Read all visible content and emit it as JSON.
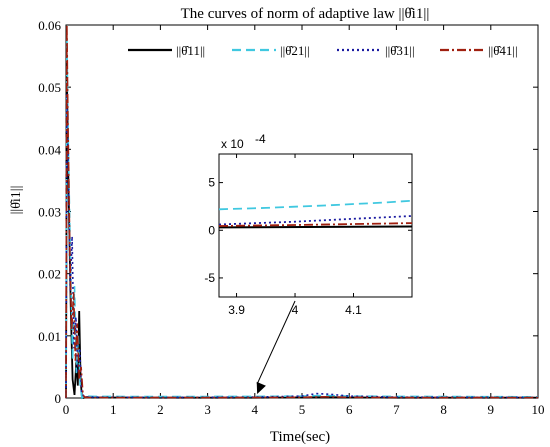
{
  "chart_data": {
    "type": "line",
    "title": "The curves of norm of adaptive law ||θ̂i1||",
    "xlabel": "Time(sec)",
    "ylabel": "||θ̂i1||",
    "xlim": [
      0,
      10
    ],
    "ylim": [
      0,
      0.06
    ],
    "xticks": [
      "0",
      "1",
      "2",
      "3",
      "4",
      "5",
      "6",
      "7",
      "8",
      "9",
      "10"
    ],
    "yticks": [
      "0",
      "0.01",
      "0.02",
      "0.03",
      "0.04",
      "0.05",
      "0.06"
    ],
    "grid": false,
    "legend_position": "top",
    "series": [
      {
        "name": "||θ̂11||",
        "color": "#000000",
        "dash": "solid",
        "x": [
          0,
          0.02,
          0.05,
          0.1,
          0.14,
          0.18,
          0.22,
          0.25,
          0.28,
          0.31,
          0.34,
          0.37,
          0.42,
          0.6,
          2,
          4,
          5,
          5.5,
          6,
          7,
          10
        ],
        "y": [
          0.0,
          0.052,
          0.035,
          0.015,
          0.003,
          0.0005,
          0.006,
          0.002,
          0.014,
          0.003,
          0.0,
          0.0,
          0.00015,
          0.0001,
          5e-05,
          5e-05,
          0.0001,
          0.00015,
          0.0001,
          5e-05,
          5e-05
        ]
      },
      {
        "name": "||θ̂21||",
        "color": "#40c8e0",
        "dash": "dashed",
        "x": [
          0,
          0.02,
          0.05,
          0.1,
          0.14,
          0.18,
          0.22,
          0.26,
          0.3,
          0.34,
          0.4,
          0.6,
          2,
          4,
          5,
          5.4,
          6,
          7,
          10
        ],
        "y": [
          0.0,
          0.058,
          0.04,
          0.02,
          0.006,
          0.018,
          0.004,
          0.01,
          0.002,
          0.0,
          0.0003,
          0.00025,
          0.00022,
          0.00025,
          0.0003,
          0.0004,
          0.0003,
          0.00025,
          0.0002
        ]
      },
      {
        "name": "||θ̂31||",
        "color": "#1a1aa0",
        "dash": "dotted",
        "x": [
          0,
          0.02,
          0.05,
          0.09,
          0.13,
          0.17,
          0.21,
          0.25,
          0.29,
          0.33,
          0.38,
          0.6,
          2,
          4,
          5,
          5.3,
          5.6,
          6,
          7,
          10
        ],
        "y": [
          0.0,
          0.049,
          0.036,
          0.017,
          0.026,
          0.008,
          0.013,
          0.004,
          0.008,
          0.001,
          0.0002,
          0.00015,
          0.0001,
          0.00015,
          0.0003,
          0.0007,
          0.0006,
          0.0003,
          0.00015,
          0.0001
        ]
      },
      {
        "name": "||θ̂41||",
        "color": "#a02010",
        "dash": "dashdot",
        "x": [
          0,
          0.02,
          0.04,
          0.08,
          0.12,
          0.16,
          0.2,
          0.24,
          0.28,
          0.32,
          0.36,
          0.4,
          0.6,
          2,
          4,
          5,
          5.5,
          6,
          7,
          10
        ],
        "y": [
          0.0,
          0.06,
          0.045,
          0.024,
          0.011,
          0.017,
          0.006,
          0.012,
          0.003,
          0.005,
          0.0005,
          0.0001,
          8e-05,
          6e-05,
          8e-05,
          0.00012,
          0.0002,
          0.00012,
          8e-05,
          6e-05
        ]
      }
    ],
    "annotation": {
      "type": "arrow",
      "from_inset": true,
      "target": {
        "x": 4.05,
        "y": 0.0
      }
    },
    "inset": {
      "type": "line",
      "xlim": [
        3.87,
        4.2
      ],
      "ylim": [
        -7,
        8
      ],
      "scale_label": "x 10",
      "scale_exponent": "-4",
      "xticks": [
        "3.9",
        "4",
        "4.1"
      ],
      "yticks": [
        "-5",
        "0",
        "5"
      ],
      "series": [
        {
          "name": "||θ̂11||",
          "color": "#000000",
          "dash": "solid",
          "x": [
            3.87,
            4.2
          ],
          "y": [
            0.3,
            0.4
          ]
        },
        {
          "name": "||θ̂21||",
          "color": "#40c8e0",
          "dash": "dashed",
          "x": [
            3.87,
            3.95,
            4.05,
            4.15,
            4.2
          ],
          "y": [
            2.2,
            2.35,
            2.6,
            2.9,
            3.1
          ]
        },
        {
          "name": "||θ̂31||",
          "color": "#1a1aa0",
          "dash": "dotted",
          "x": [
            3.87,
            4.0,
            4.1,
            4.2
          ],
          "y": [
            0.6,
            0.9,
            1.2,
            1.5
          ]
        },
        {
          "name": "||θ̂41||",
          "color": "#a02010",
          "dash": "dashdot",
          "x": [
            3.87,
            4.0,
            4.2
          ],
          "y": [
            0.45,
            0.55,
            0.75
          ]
        }
      ]
    }
  }
}
